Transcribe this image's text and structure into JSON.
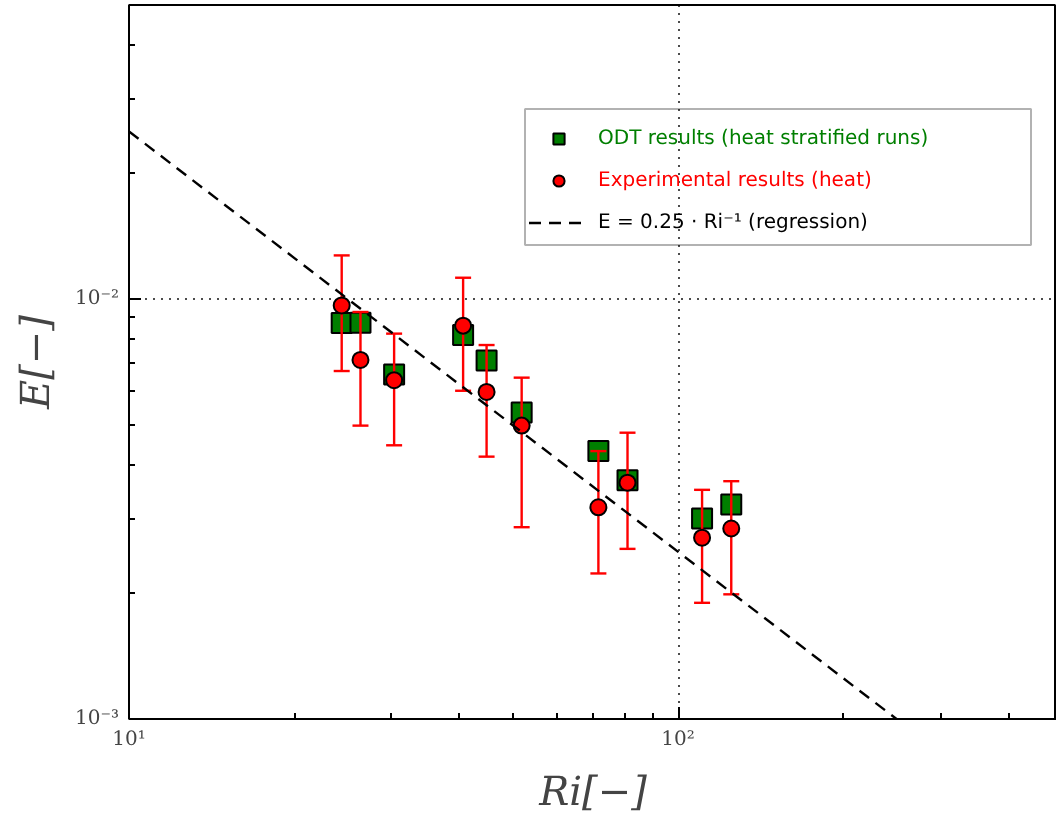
{
  "chart_data": {
    "type": "scatter",
    "x": [
      24.4,
      26.4,
      30.4,
      40.6,
      44.8,
      51.9,
      71.6,
      80.9,
      110.6,
      125
    ],
    "xlabel": "Ri[−]",
    "ylabel": "E[−]",
    "log": "xy",
    "xlim": [
      10,
      490
    ],
    "ylim": [
      0.001,
      0.05
    ],
    "xticks": [
      {
        "value": 10,
        "label": "10¹"
      },
      {
        "value": 100,
        "label": "10²"
      }
    ],
    "yticks": [
      {
        "value": 0.001,
        "label": "10⁻³"
      },
      {
        "value": 0.01,
        "label": "10⁻²"
      }
    ],
    "grid": true,
    "legend": "top right",
    "series": [
      {
        "name": "ODT results (heat stratified runs)",
        "color": "#007f00",
        "marker": "square",
        "values": [
          0.00875,
          0.00877,
          0.0066,
          0.0082,
          0.00713,
          0.00536,
          0.00434,
          0.0037,
          0.003,
          0.00324
        ]
      },
      {
        "name": "Experimental results (heat)",
        "color": "#ff0000",
        "marker": "circle",
        "values": [
          0.00964,
          0.00715,
          0.0064,
          0.00863,
          0.006,
          0.00499,
          0.00319,
          0.00365,
          0.0027,
          0.00284
        ],
        "errors": [
          [
            0.00673,
            0.01268
          ],
          [
            0.00499,
            0.0093
          ],
          [
            0.00448,
            0.00826
          ],
          [
            0.00604,
            0.01122
          ],
          [
            0.00421,
            0.00776
          ],
          [
            0.00286,
            0.00649
          ],
          [
            0.00222,
            0.00434
          ],
          [
            0.00254,
            0.0048
          ],
          [
            0.00189,
            0.00351
          ],
          [
            0.00198,
            0.00368
          ]
        ]
      },
      {
        "name": "E = 0.25 · Ri⁻¹ (regression)",
        "color": "#000000",
        "type": "line",
        "line_style": "dashed",
        "x": [
          10,
          250
        ],
        "values": [
          0.025,
          0.001
        ]
      }
    ]
  }
}
